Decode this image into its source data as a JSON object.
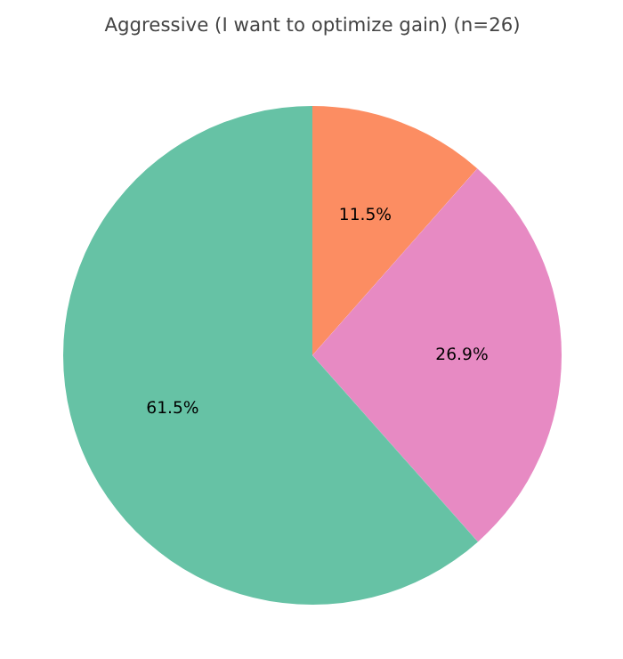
{
  "chart_data": {
    "type": "pie",
    "title": "Aggressive (I want to optimize gain) (n=26)",
    "categories": [
      null,
      null,
      null
    ],
    "values": [
      11.5,
      26.9,
      61.5
    ],
    "colors": [
      "#fc8d62",
      "#e78ac3",
      "#66c2a5"
    ],
    "value_labels": [
      "11.5%",
      "26.9%",
      "61.5%"
    ]
  }
}
